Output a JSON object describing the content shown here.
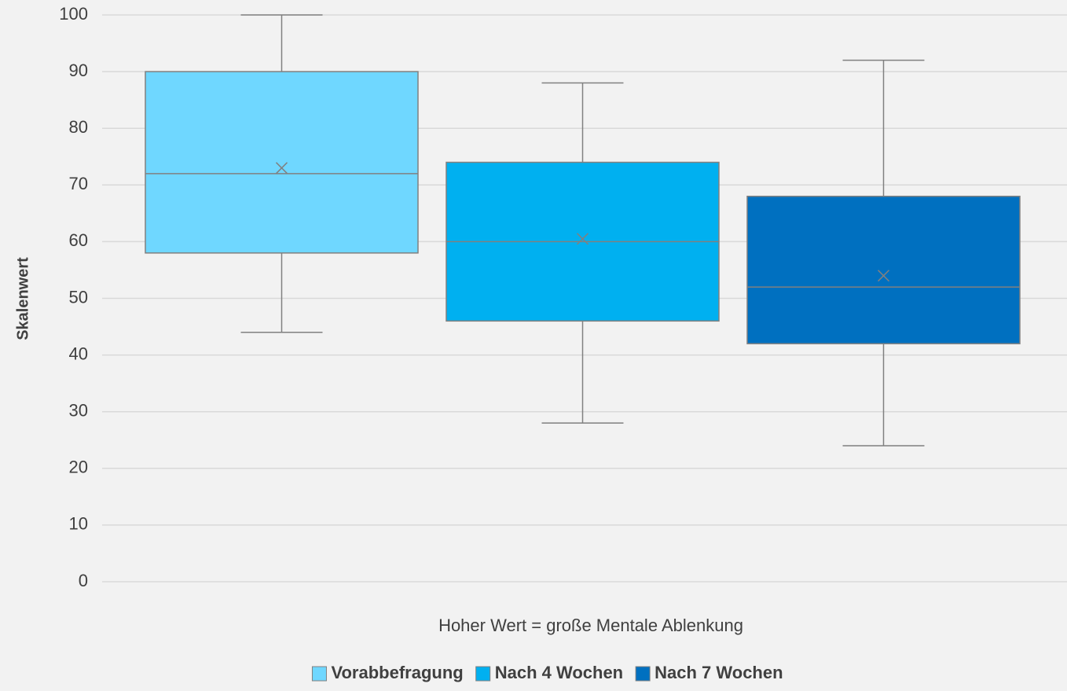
{
  "chart_data": {
    "type": "box",
    "y_label": "Skalenwert",
    "x_label": "Hoher Wert = große Mentale Ablenkung",
    "ylim": [
      0,
      100
    ],
    "yticks": [
      0,
      10,
      20,
      30,
      40,
      50,
      60,
      70,
      80,
      90,
      100
    ],
    "grid": true,
    "legend": "bottom",
    "series": [
      {
        "name": "Vorabbefragung",
        "color": "#6fd7ff",
        "min": 44,
        "q1": 58,
        "median": 72,
        "q3": 90,
        "max": 100,
        "mean": 73
      },
      {
        "name": "Nach 4 Wochen",
        "color": "#00b0f0",
        "min": 28,
        "q1": 46,
        "median": 60,
        "q3": 74,
        "max": 88,
        "mean": 60.5
      },
      {
        "name": "Nach 7 Wochen",
        "color": "#0070c0",
        "min": 24,
        "q1": 42,
        "median": 52,
        "q3": 68,
        "max": 92,
        "mean": 54
      }
    ]
  }
}
